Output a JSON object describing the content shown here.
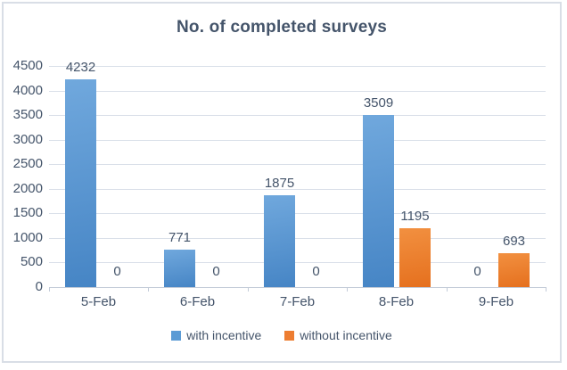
{
  "chart_data": {
    "type": "bar",
    "title": "No. of completed surveys",
    "categories": [
      "5-Feb",
      "6-Feb",
      "7-Feb",
      "8-Feb",
      "9-Feb"
    ],
    "series": [
      {
        "name": "with incentive",
        "color": "#5B9BD5",
        "gradient": [
          "#70A8DD",
          "#4685C5"
        ],
        "values": [
          4232,
          771,
          1875,
          3509,
          0
        ]
      },
      {
        "name": "without incentive",
        "color": "#ED7D31",
        "gradient": [
          "#F29040",
          "#E5701E"
        ],
        "values": [
          0,
          0,
          0,
          1195,
          693
        ]
      }
    ],
    "ylim": [
      0,
      4500
    ],
    "ytick_step": 500,
    "grid": true,
    "data_labels": true,
    "legend_position": "bottom",
    "colors": {
      "text": "#44546A",
      "gridline": "#DAE0E9",
      "axis": "#C3CBD8",
      "border": "#D9DEE6",
      "background": "#FFFFFF"
    }
  }
}
